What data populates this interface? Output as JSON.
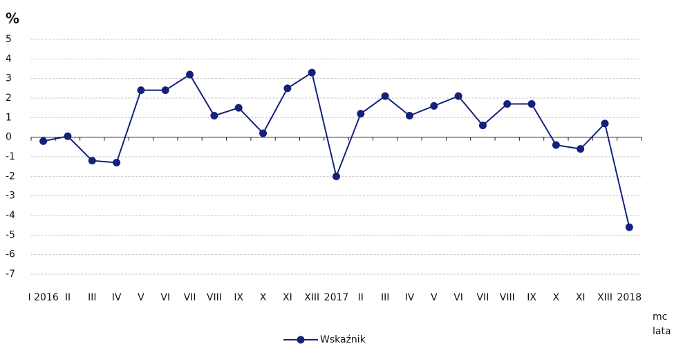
{
  "chart_data": {
    "type": "line",
    "y_axis_label": "%",
    "x_axis_labels": [
      "mc",
      "lata"
    ],
    "categories": [
      "I 2016",
      "II",
      "III",
      "IV",
      "V",
      "VI",
      "VII",
      "VIII",
      "IX",
      "X",
      "XI",
      "XIII",
      "2017",
      "II",
      "III",
      "IV",
      "V",
      "VI",
      "VII",
      "VIII",
      "IX",
      "X",
      "XI",
      "XIII",
      "2018"
    ],
    "series": [
      {
        "name": "Wskaźnik",
        "color": "#14217a",
        "values": [
          -0.2,
          0.05,
          -1.2,
          -1.3,
          2.4,
          2.4,
          3.2,
          1.1,
          1.5,
          0.2,
          2.5,
          3.3,
          -2.0,
          1.2,
          2.1,
          1.1,
          1.6,
          2.1,
          0.6,
          1.7,
          1.7,
          -0.4,
          -0.6,
          0.7,
          -4.6
        ]
      }
    ],
    "ylim": [
      -7,
      5
    ],
    "yticks": [
      5,
      4,
      3,
      2,
      1,
      0,
      -1,
      -2,
      -3,
      -4,
      -5,
      -6,
      -7
    ],
    "grid": true,
    "legend": "bottom"
  }
}
